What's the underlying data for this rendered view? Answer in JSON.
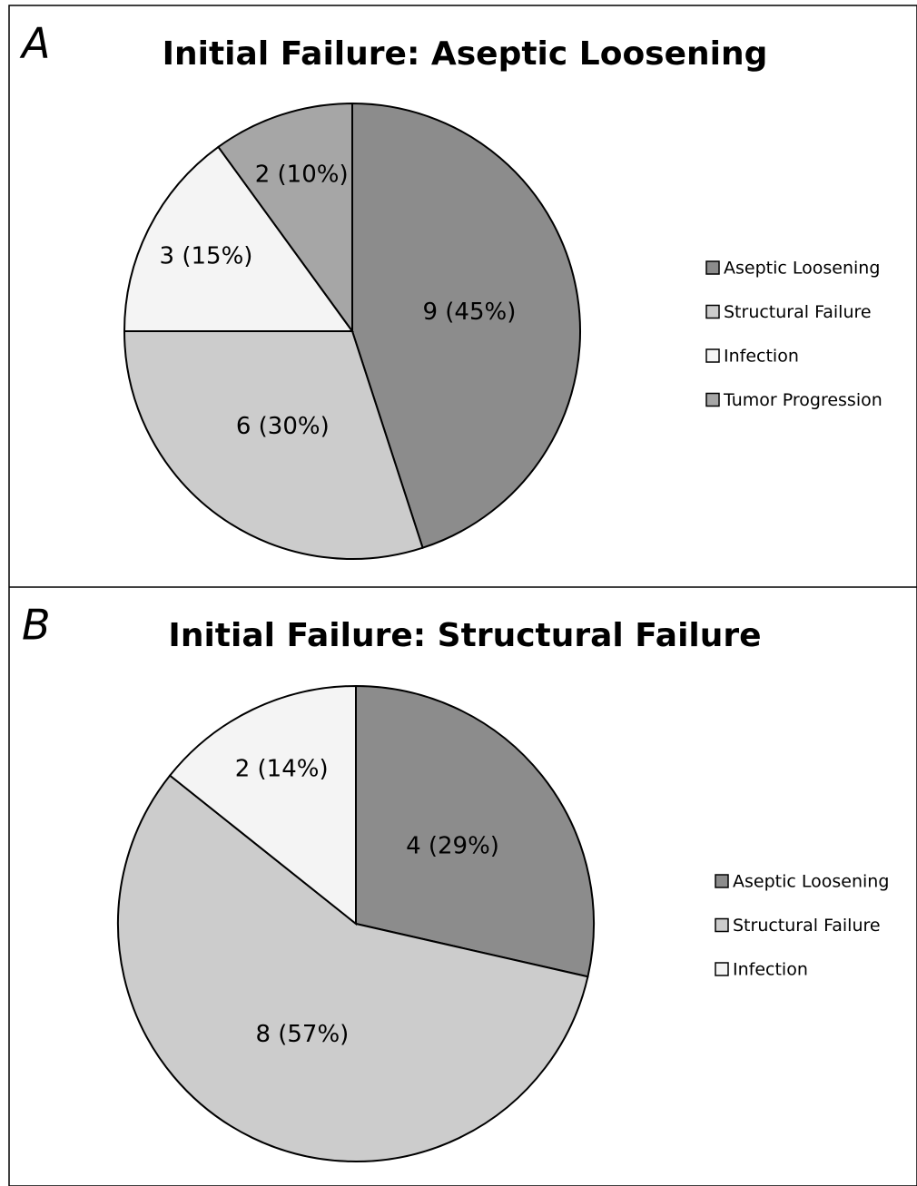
{
  "chart_data": [
    {
      "type": "pie",
      "panel": "A",
      "title": "Initial Failure: Aseptic Loosening",
      "categories": [
        "Aseptic Loosening",
        "Structural Failure",
        "Infection",
        "Tumor Progression"
      ],
      "values": [
        9,
        6,
        3,
        2
      ],
      "value_labels": [
        "9 (45%)",
        "6 (30%)",
        "3 (15%)",
        "2 (10%)"
      ],
      "colors": [
        "#8c8c8c",
        "#cccccc",
        "#f4f4f4",
        "#a6a6a6"
      ],
      "legend": "right"
    },
    {
      "type": "pie",
      "panel": "B",
      "title": "Initial Failure: Structural Failure",
      "categories": [
        "Aseptic Loosening",
        "Structural Failure",
        "Infection"
      ],
      "values": [
        4,
        8,
        2
      ],
      "value_labels": [
        "4 (29%)",
        "8 (57%)",
        "2 (14%)"
      ],
      "colors": [
        "#8c8c8c",
        "#cccccc",
        "#f4f4f4"
      ],
      "legend": "right"
    }
  ]
}
